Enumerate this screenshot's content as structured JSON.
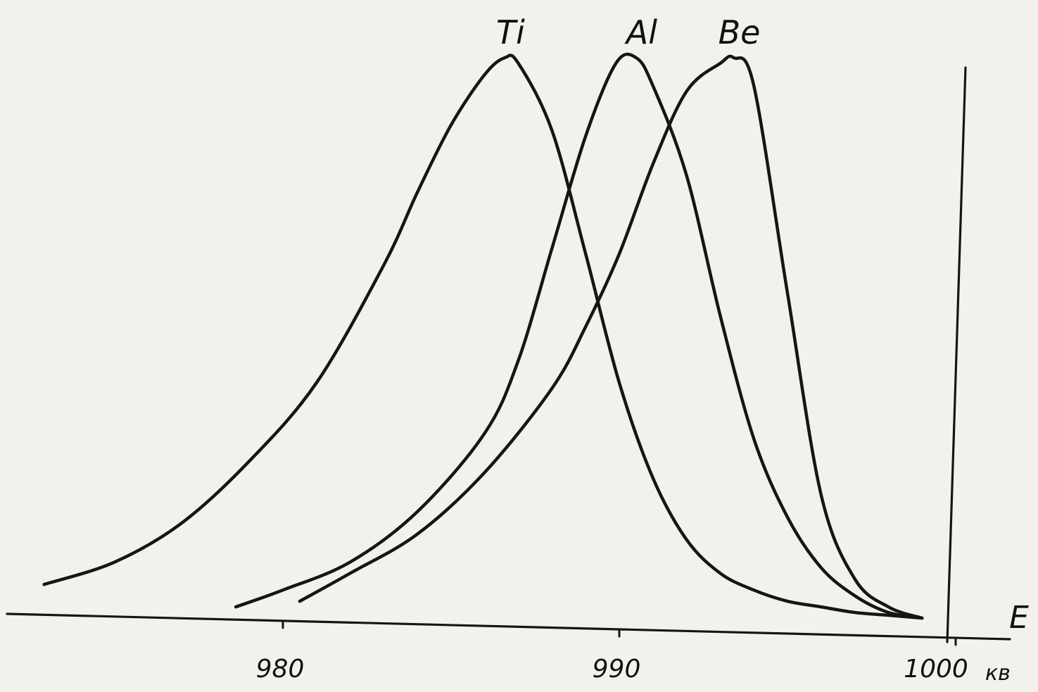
{
  "chart_data": {
    "type": "line",
    "title": "",
    "xlabel": "E",
    "ylabel": "",
    "xunit": "кв",
    "xlim": [
      975,
      1000
    ],
    "ylim": [
      0,
      1
    ],
    "grid": false,
    "legend": "labels at curve peaks",
    "xticks": [
      {
        "value": 980,
        "label": "980"
      },
      {
        "value": 990,
        "label": "990"
      },
      {
        "value": 1000,
        "label": "1000"
      }
    ],
    "series": [
      {
        "name": "Ti",
        "x": [
          972.9,
          975,
          977,
          979,
          981,
          983,
          984,
          985,
          986,
          986.6,
          987,
          988,
          989,
          990,
          991,
          992,
          993,
          994,
          995,
          996,
          997,
          998,
          999
        ],
        "y": [
          0.06,
          0.1,
          0.17,
          0.28,
          0.42,
          0.63,
          0.76,
          0.88,
          0.97,
          1.0,
          0.99,
          0.87,
          0.65,
          0.42,
          0.25,
          0.14,
          0.08,
          0.05,
          0.03,
          0.02,
          0.01,
          0.005,
          0.0
        ]
      },
      {
        "name": "Al",
        "x": [
          978.6,
          980,
          982,
          984,
          986,
          987,
          988,
          989,
          989.9,
          990.5,
          991,
          992,
          993,
          994,
          995,
          996,
          997,
          998,
          999
        ],
        "y": [
          0.02,
          0.05,
          0.1,
          0.19,
          0.33,
          0.46,
          0.66,
          0.86,
          0.99,
          1.0,
          0.95,
          0.79,
          0.54,
          0.32,
          0.18,
          0.09,
          0.04,
          0.01,
          0.0
        ]
      },
      {
        "name": "Be",
        "x": [
          980.5,
          982,
          984,
          986,
          988,
          989,
          990,
          991,
          992,
          993,
          993.4,
          994,
          995,
          996,
          997,
          998,
          999
        ],
        "y": [
          0.03,
          0.08,
          0.15,
          0.26,
          0.41,
          0.52,
          0.65,
          0.81,
          0.94,
          0.99,
          1.0,
          0.95,
          0.58,
          0.22,
          0.07,
          0.02,
          0.0
        ]
      }
    ]
  }
}
